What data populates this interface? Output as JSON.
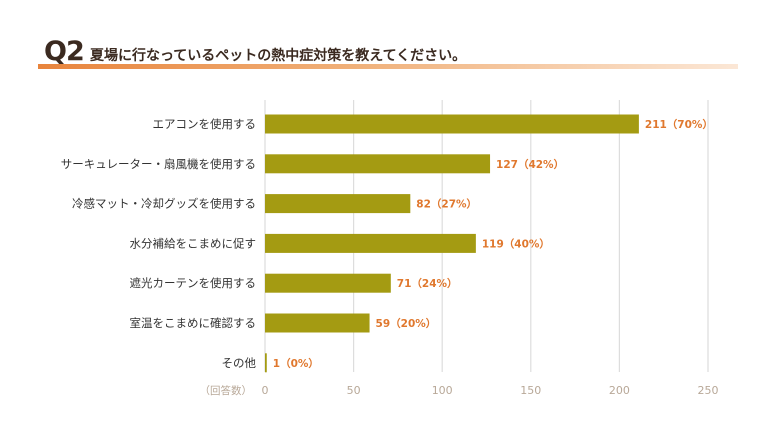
{
  "header": {
    "q_number": "Q2",
    "title": "夏場に行なっているペットの熱中症対策を教えてください。"
  },
  "chart_data": {
    "type": "bar",
    "orientation": "horizontal",
    "categories": [
      "エアコンを使用する",
      "サーキュレーター・扇風機を使用する",
      "冷感マット・冷却グッズを使用する",
      "水分補給をこまめに促す",
      "遮光カーテンを使用する",
      "室温をこまめに確認する",
      "その他"
    ],
    "values": [
      211,
      127,
      82,
      119,
      71,
      59,
      1
    ],
    "value_labels": [
      "211（70%）",
      "127（42%）",
      "82（27%）",
      "119（40%）",
      "71（24%）",
      "59（20%）",
      "1（0%）"
    ],
    "x_ticks": [
      0,
      50,
      100,
      150,
      200,
      250
    ],
    "x_tick_labels": [
      "0",
      "50",
      "100",
      "150",
      "200",
      "250"
    ],
    "xlim": [
      0,
      250
    ],
    "unit_label": "（回答数）",
    "grid": true,
    "bar_color": "#a49b12",
    "value_label_color": "#e0782e"
  }
}
